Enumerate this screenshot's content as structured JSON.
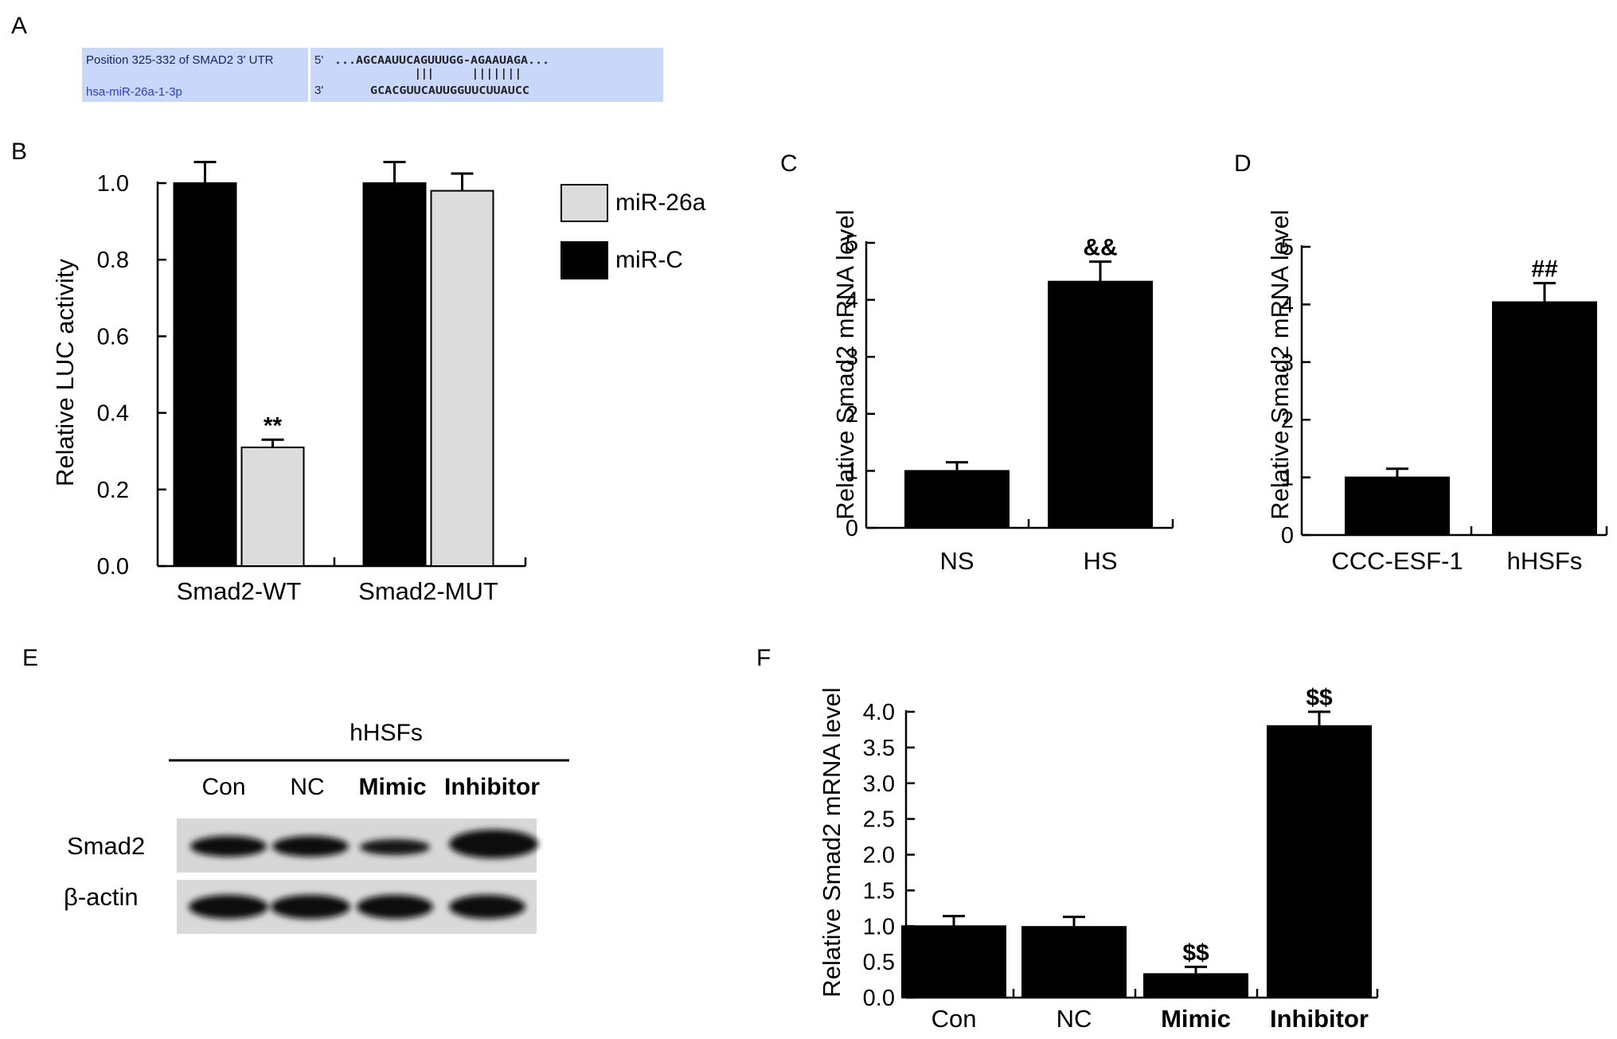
{
  "panel_letters": {
    "a": "A",
    "b": "B",
    "c": "C",
    "d": "D",
    "e": "E",
    "f": "F"
  },
  "utr_box": {
    "position_label": "Position 325-332 of SMAD2 3' UTR",
    "mirna_label": "hsa-miR-26a-1-3p",
    "prime5": "5'",
    "prime3": "3'",
    "target_seq": "...AGCAAUUCAGUUUGG-AGAAUAGA...",
    "pair_lines": "|||      |||||||",
    "mirna_seq": "GCACGUUCAUUGGUUCUUAUCC",
    "colors": {
      "fill": "#c9d7fb",
      "divider": "#ffffff"
    }
  },
  "blot": {
    "group_label": "hHSFs",
    "lanes": [
      "Con",
      "NC",
      "Mimic",
      "Inhibitor"
    ],
    "rows": [
      "Smad2",
      "β-actin"
    ]
  },
  "chart_data": [
    {
      "panel": "B",
      "type": "bar",
      "ylabel": "Relative LUC activity",
      "ylim": [
        0,
        1.0
      ],
      "yticks": [
        "0.0",
        "0.2",
        "0.4",
        "0.6",
        "0.8",
        "1.0"
      ],
      "categories": [
        "Smad2-WT",
        "Smad2-MUT"
      ],
      "series": [
        {
          "name": "miR-C",
          "color": "#000000",
          "values": [
            1.0,
            1.0
          ],
          "errors": [
            0.055,
            0.055
          ]
        },
        {
          "name": "miR-26a",
          "color": "#dcdcdc",
          "values": [
            0.31,
            0.98
          ],
          "errors": [
            0.02,
            0.045
          ]
        }
      ],
      "legend_order": [
        "miR-26a",
        "miR-C"
      ],
      "legend_position": "right",
      "annotations": [
        {
          "category": "Smad2-WT",
          "series": "miR-26a",
          "text": "**"
        }
      ]
    },
    {
      "panel": "C",
      "type": "bar",
      "ylabel": "Relative Smad2 mRNA level",
      "ylim": [
        0,
        5
      ],
      "yticks": [
        "0",
        "1",
        "2",
        "3",
        "4",
        "5"
      ],
      "categories": [
        "NS",
        "HS"
      ],
      "values": [
        1.0,
        4.32
      ],
      "errors": [
        0.15,
        0.35
      ],
      "annotations": [
        {
          "category": "HS",
          "text": "&&"
        }
      ]
    },
    {
      "panel": "D",
      "type": "bar",
      "ylabel": "Relative Smad2 mRNA level",
      "ylim": [
        0,
        5
      ],
      "yticks": [
        "0",
        "1",
        "2",
        "3",
        "4",
        "5"
      ],
      "categories": [
        "CCC-ESF-1",
        "hHSFs"
      ],
      "values": [
        1.0,
        4.04
      ],
      "errors": [
        0.15,
        0.33
      ],
      "annotations": [
        {
          "category": "hHSFs",
          "text": "##"
        }
      ]
    },
    {
      "panel": "F",
      "type": "bar",
      "ylabel": "Relative Smad2 mRNA level",
      "ylim": [
        0,
        4.0
      ],
      "yticks": [
        "0.0",
        "0.5",
        "1.0",
        "1.5",
        "2.0",
        "2.5",
        "3.0",
        "3.5",
        "4.0"
      ],
      "categories": [
        "Con",
        "NC",
        "Mimic",
        "Inhibitor"
      ],
      "values": [
        1.0,
        0.99,
        0.33,
        3.8
      ],
      "errors": [
        0.14,
        0.14,
        0.1,
        0.2
      ],
      "annotations": [
        {
          "category": "Mimic",
          "text": "$$"
        },
        {
          "category": "Inhibitor",
          "text": "$$"
        }
      ]
    }
  ]
}
